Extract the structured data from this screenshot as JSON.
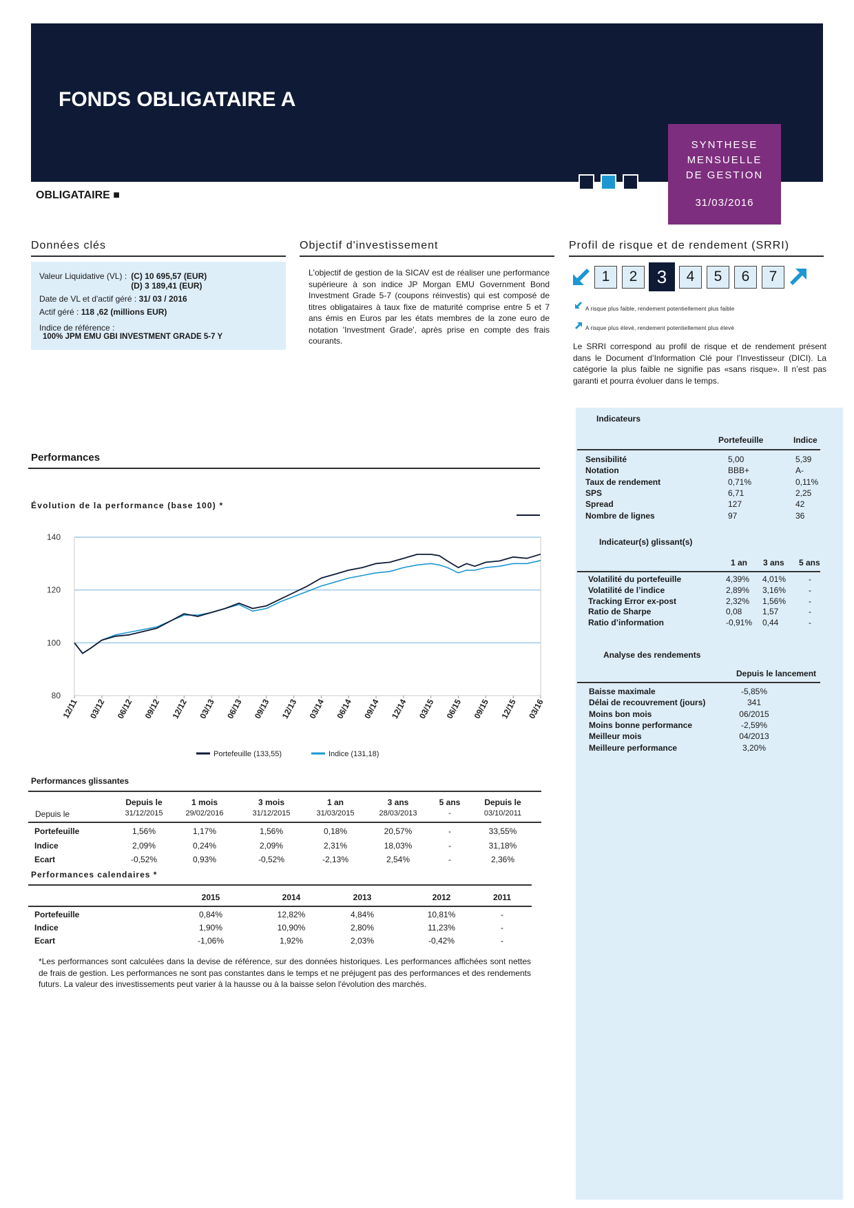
{
  "header": {
    "fund_title": "FONDS OBLIGATAIRE A",
    "report_l1": "SYNTHESE",
    "report_l2": "MENSUELLE",
    "report_l3": "DE GESTION",
    "report_date": "31/03/2016",
    "category": "OBLIGATAIRE ■",
    "colors": {
      "navy": "#0f1a36",
      "purple": "#7d2e7e",
      "blue": "#1c97d2",
      "panel": "#deeef9"
    }
  },
  "key_data": {
    "heading": "Données clés",
    "vl_label": "Valeur Liquidative (VL) :",
    "vl_c": "(C) 10 695,57 (EUR)",
    "vl_d": "(D) 3 189,41 (EUR)",
    "date_label": "Date de VL et d'actif  géré :",
    "date_value": "31/ 03 / 2016",
    "aum_label": "Actif géré :",
    "aum_value": "118 ,62 (millions EUR)",
    "index_label": "Indice de référence :",
    "index_value": "100% JPM EMU GBI INVESTMENT GRADE 5-7 Y"
  },
  "objective": {
    "heading": "Objectif d'investissement",
    "text": "L'objectif de gestion de la SICAV est de réaliser une performance supérieure à son indice JP Morgan EMU Government Bond Investment Grade 5-7 (coupons réinvestis) qui est composé de titres obligataires à taux fixe de maturité comprise entre 5 et 7 ans émis en Euros par les états membres de la zone euro de notation 'Investment Grade', après prise en compte des frais courants."
  },
  "srri": {
    "heading": "Profil de risque et de rendement  (SRRI)",
    "levels": [
      "1",
      "2",
      "3",
      "4",
      "5",
      "6",
      "7"
    ],
    "active_level": 3,
    "low_note": "A risque plus faible, rendement potentiellement plus faible",
    "high_note": "A risque plus élevé, rendement potentiellement plus élevé",
    "text": "Le SRRI correspond au profil de risque et de rendement présent dans le Document d’Information Clé pour l’Investisseur (DICI). La catégorie la plus faible ne signifie pas «sans risque». Il n’est pas garanti et pourra évoluer dans le temps.",
    "left_icon": "arrow-down-left-icon",
    "right_icon": "arrow-up-right-icon"
  },
  "indicators": {
    "title": "Indicateurs",
    "col_portfolio": "Portefeuille",
    "col_index": "Indice",
    "rows": [
      {
        "label": "Sensibilité",
        "portfolio": "5,00",
        "index": "5,39"
      },
      {
        "label": "Notation",
        "portfolio": "BBB+",
        "index": "A-"
      },
      {
        "label": "Taux de rendement",
        "portfolio": "0,71%",
        "index": "0,11%"
      },
      {
        "label": "SPS",
        "portfolio": "6,71",
        "index": "2,25"
      },
      {
        "label": "Spread",
        "portfolio": "127",
        "index": "42"
      },
      {
        "label": "Nombre de lignes",
        "portfolio": "97",
        "index": "36"
      }
    ]
  },
  "rolling_indicators": {
    "title": "Indicateur(s) glissant(s)",
    "cols": [
      "1 an",
      "3 ans",
      "5 ans"
    ],
    "rows": [
      {
        "label": "Volatilité du portefeuille",
        "values": [
          "4,39%",
          "4,01%",
          "-"
        ]
      },
      {
        "label": "Volatilité de l’indice",
        "values": [
          "2,89%",
          "3,16%",
          "-"
        ]
      },
      {
        "label": "Tracking Error ex-post",
        "values": [
          "2,32%",
          "1,56%",
          "-"
        ]
      },
      {
        "label": "Ratio de Sharpe",
        "values": [
          "0,08",
          "1,57",
          "-"
        ]
      },
      {
        "label": "Ratio d’information",
        "values": [
          "-0,91%",
          "0,44",
          "-"
        ]
      }
    ]
  },
  "returns_analysis": {
    "title": "Analyse des rendements",
    "col": "Depuis le lancement",
    "rows": [
      {
        "label": "Baisse maximale",
        "value": "-5,85%"
      },
      {
        "label": "Délai de recouvrement (jours)",
        "value": "341"
      },
      {
        "label": "Moins bon mois",
        "value": "06/2015"
      },
      {
        "label": "Moins bonne performance",
        "value": "-2,59%"
      },
      {
        "label": "Meilleur mois",
        "value": "04/2013"
      },
      {
        "label": "Meilleure performance",
        "value": "3,20%"
      }
    ]
  },
  "performances": {
    "heading": "Performances",
    "chart_title": "Évolution de la performance (base 100) *"
  },
  "chart_data": {
    "type": "line",
    "title": "Évolution de la performance (base 100) *",
    "ylim": [
      80,
      140
    ],
    "yticks": [
      80,
      100,
      120,
      140
    ],
    "xlabels": [
      "12/11",
      "03/12",
      "06/12",
      "09/12",
      "12/12",
      "03/13",
      "06/13",
      "09/13",
      "12/13",
      "03/14",
      "06/14",
      "09/14",
      "12/14",
      "03/15",
      "06/15",
      "09/15",
      "12/15",
      "03/16"
    ],
    "grid": "horizontal",
    "legend": "bottom",
    "series": [
      {
        "name": "Portefeuille (133,55)",
        "color": "#0f1a36",
        "x": [
          0,
          0.3,
          0.6,
          1.0,
          1.5,
          2.0,
          3.0,
          4.0,
          4.5,
          5.0,
          5.5,
          6.0,
          6.5,
          7.0,
          7.5,
          8.0,
          8.5,
          9.0,
          9.5,
          10.0,
          10.5,
          11.0,
          11.5,
          12.0,
          12.5,
          13.0,
          13.3,
          13.6,
          14.0,
          14.3,
          14.6,
          15.0,
          15.5,
          16.0,
          16.5,
          17.0
        ],
        "values": [
          100,
          96,
          98,
          101,
          102.5,
          103,
          105.5,
          111,
          110,
          111.5,
          113,
          115,
          113,
          114,
          116.5,
          119,
          121.5,
          124.5,
          126,
          127.5,
          128.5,
          130,
          130.5,
          132,
          133.5,
          133.5,
          133,
          131,
          128.5,
          130,
          129,
          130.5,
          131,
          132.5,
          132,
          133.55
        ]
      },
      {
        "name": "Indice (131,18)",
        "color": "#1c97d2",
        "x": [
          0,
          0.3,
          0.6,
          1.0,
          1.5,
          2.0,
          3.0,
          4.0,
          4.5,
          5.0,
          5.5,
          6.0,
          6.5,
          7.0,
          7.5,
          8.0,
          8.5,
          9.0,
          9.5,
          10.0,
          10.5,
          11.0,
          11.5,
          12.0,
          12.5,
          13.0,
          13.3,
          13.6,
          14.0,
          14.3,
          14.6,
          15.0,
          15.5,
          16.0,
          16.5,
          17.0
        ],
        "values": [
          100,
          96,
          98,
          101,
          103,
          104,
          106,
          110.5,
          110.5,
          111.5,
          113,
          114.5,
          112,
          113,
          115.5,
          117.5,
          119.5,
          121.5,
          123,
          124.5,
          125.5,
          126.5,
          127,
          128.5,
          129.5,
          130,
          129.5,
          128.5,
          126.5,
          127.5,
          127.5,
          128.5,
          129,
          130,
          130,
          131.18
        ]
      }
    ]
  },
  "rolling_perf": {
    "title": "Performances glissantes",
    "since_label": "Depuis le",
    "cols": [
      {
        "h": "Depuis le",
        "d": "31/12/2015"
      },
      {
        "h": "1 mois",
        "d": "29/02/2016"
      },
      {
        "h": "3 mois",
        "d": "31/12/2015"
      },
      {
        "h": "1 an",
        "d": "31/03/2015"
      },
      {
        "h": "3 ans",
        "d": "28/03/2013"
      },
      {
        "h": "5 ans",
        "d": "-"
      },
      {
        "h": "Depuis le",
        "d": "03/10/2011"
      }
    ],
    "rows": [
      {
        "label": "Portefeuille",
        "values": [
          "1,56%",
          "1,17%",
          "1,56%",
          "0,18%",
          "20,57%",
          "-",
          "33,55%"
        ]
      },
      {
        "label": "Indice",
        "values": [
          "2,09%",
          "0,24%",
          "2,09%",
          "2,31%",
          "18,03%",
          "-",
          "31,18%"
        ]
      },
      {
        "label": "Ecart",
        "values": [
          "-0,52%",
          "0,93%",
          "-0,52%",
          "-2,13%",
          "2,54%",
          "-",
          "2,36%"
        ]
      }
    ]
  },
  "calendar_perf": {
    "title": "Performances calendaires  *",
    "cols": [
      "2015",
      "2014",
      "2013",
      "2012",
      "2011"
    ],
    "rows": [
      {
        "label": "Portefeuille",
        "values": [
          "0,84%",
          "12,82%",
          "4,84%",
          "10,81%",
          "-"
        ]
      },
      {
        "label": "Indice",
        "values": [
          "1,90%",
          "10,90%",
          "2,80%",
          "11,23%",
          "-"
        ]
      },
      {
        "label": "Ecart",
        "values": [
          "-1,06%",
          "1,92%",
          "2,03%",
          "-0,42%",
          "-"
        ]
      }
    ]
  },
  "disclaimer": "*Les performances sont calculées dans la devise de référence, sur des données historiques. Les performances affichées sont nettes de frais de gestion. Les performances ne sont pas constantes dans le temps et ne préjugent pas des performances et des rendements futurs. La valeur des investissements peut varier à la hausse ou à la baisse selon l'évolution des marchés."
}
